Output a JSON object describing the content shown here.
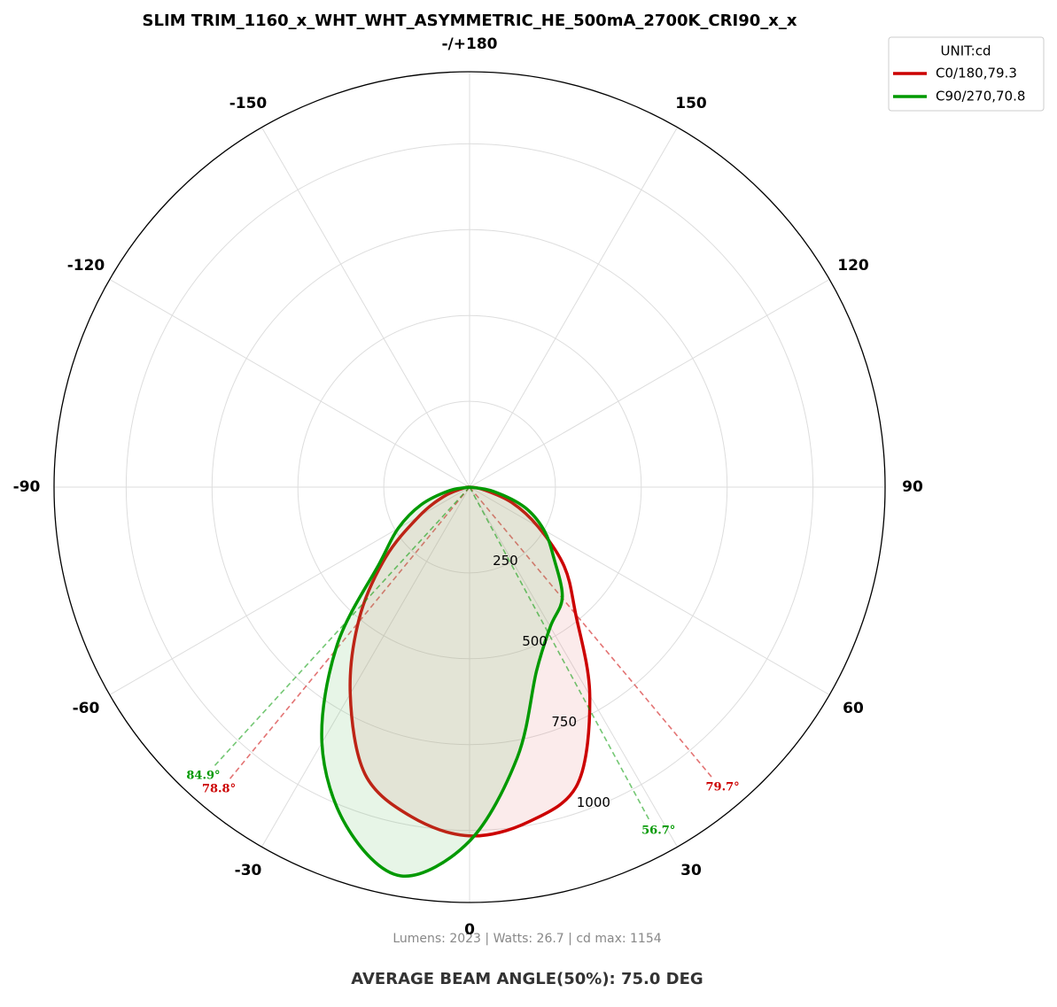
{
  "chart_data": {
    "type": "polar",
    "title": "SLIM TRIM_1160_x_WHT_WHT_ASYMMETRIC_HE_500mA_2700K_CRI90_x_x",
    "x": [
      -90,
      -80,
      -70,
      -60,
      -50,
      -40,
      -30,
      -20,
      -10,
      0,
      10,
      20,
      30,
      40,
      50,
      60,
      70,
      80,
      90
    ],
    "series": [
      {
        "name": "C0/180,79.3",
        "color": "#cc0000",
        "fill": "rgba(230,120,120,0.15)",
        "values": [
          0,
          20,
          80,
          170,
          320,
          500,
          695,
          890,
          975,
          1016,
          990,
          920,
          700,
          480,
          360,
          230,
          130,
          40,
          0
        ],
        "beam_angles": [
          78.8,
          79.7
        ],
        "beam_angle_labels": [
          "78.8°",
          "79.7°"
        ]
      },
      {
        "name": "C90/270,70.8",
        "color": "#009900",
        "fill": "rgba(120,200,120,0.18)",
        "values": [
          0,
          60,
          150,
          240,
          340,
          600,
          860,
          1050,
          1150,
          1031,
          800,
          570,
          470,
          420,
          320,
          250,
          170,
          70,
          0
        ],
        "beam_angles": [
          84.9,
          56.7
        ],
        "beam_angle_labels": [
          "84.9°",
          "56.7°"
        ]
      }
    ],
    "rlim": [
      0,
      1210
    ],
    "rticks": [
      250,
      500,
      750,
      1000
    ],
    "thetaticks": [
      -150,
      -120,
      -90,
      -60,
      -30,
      0,
      30,
      60,
      90,
      120,
      {
        "value": 180,
        "label": "-/+180"
      },
      150
    ],
    "legend_title": "UNIT:cd",
    "legend": "upper right",
    "grid": true,
    "footer": "Lumens: 2023  |  Watts: 26.7  |  cd max: 1154",
    "annotation": "AVERAGE BEAM ANGLE(50%): 75.0 DEG"
  }
}
